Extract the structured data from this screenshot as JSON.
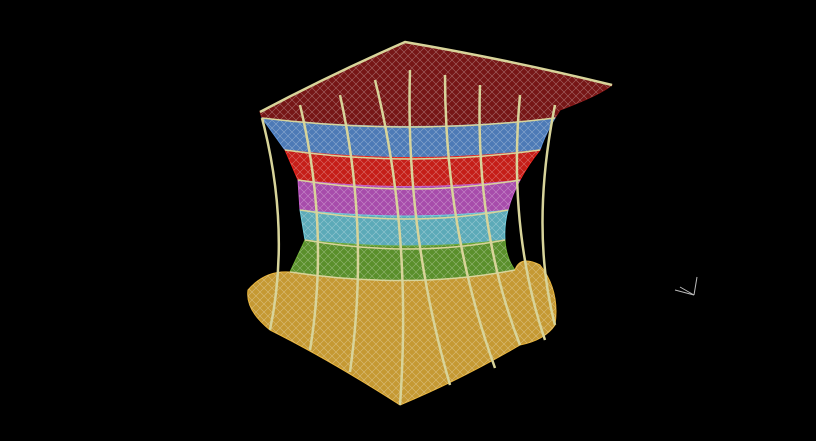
{
  "scene": {
    "background": "#000000",
    "bands": [
      {
        "name": "top-band",
        "color": "#8b1a1a"
      },
      {
        "name": "blue-band",
        "color": "#5a8fd6"
      },
      {
        "name": "red-band",
        "color": "#e8231c"
      },
      {
        "name": "magenta-band",
        "color": "#c459c9"
      },
      {
        "name": "cyan-band",
        "color": "#6cc8d8"
      },
      {
        "name": "green-band",
        "color": "#6aa832"
      },
      {
        "name": "base-band",
        "color": "#e8b43c"
      }
    ],
    "frame_color": "#d8d49a",
    "axis_triad_color": "#bbbbbb"
  }
}
